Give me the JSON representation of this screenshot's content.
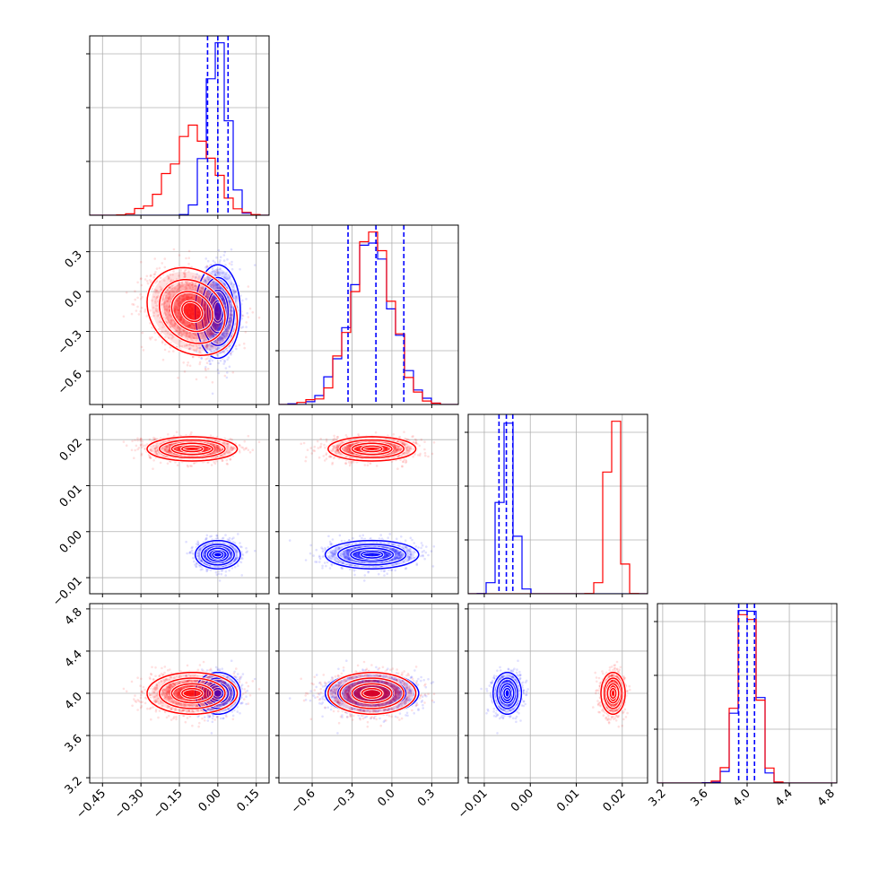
{
  "chart_data": {
    "type": "corner",
    "title": "",
    "grid": true,
    "series_colors": {
      "blue": "#0000ff",
      "red": "#ff0000"
    },
    "parameters": [
      {
        "index": 0,
        "range": [
          -0.5,
          0.2
        ],
        "ticks": [
          -0.45,
          -0.3,
          -0.15,
          0.0,
          0.15
        ],
        "tick_labels": [
          "−0.45",
          "−0.30",
          "−0.15",
          "0.00",
          "0.15"
        ]
      },
      {
        "index": 1,
        "range": [
          -0.85,
          0.5
        ],
        "ticks": [
          -0.6,
          -0.3,
          0.0,
          0.3
        ],
        "tick_labels": [
          "−0.6",
          "−0.3",
          "0.0",
          "0.3"
        ]
      },
      {
        "index": 2,
        "range": [
          -0.0135,
          0.0255
        ],
        "ticks": [
          -0.01,
          0.0,
          0.01,
          0.02
        ],
        "tick_labels": [
          "−0.01",
          "0.00",
          "0.01",
          "0.02"
        ]
      },
      {
        "index": 3,
        "range": [
          3.15,
          4.85
        ],
        "ticks": [
          3.2,
          3.6,
          4.0,
          4.4,
          4.8
        ],
        "tick_labels": [
          "3.2",
          "3.6",
          "4.0",
          "4.4",
          "4.8"
        ]
      }
    ],
    "series": [
      {
        "color": "blue",
        "mean": [
          0.0,
          -0.15,
          -0.005,
          4.0
        ],
        "std": [
          0.04,
          0.16,
          0.0014,
          0.09
        ],
        "corr_01": 0.0,
        "quantile_lines": [
          [
            -0.04,
            0.0,
            0.04
          ],
          [
            -0.33,
            -0.12,
            0.09
          ],
          [
            -0.0068,
            -0.0052,
            -0.0038
          ],
          [
            3.92,
            4.0,
            4.07
          ]
        ]
      },
      {
        "color": "red",
        "mean": [
          -0.1,
          -0.15,
          0.018,
          4.0
        ],
        "std": [
          0.08,
          0.15,
          0.0012,
          0.09
        ],
        "corr_01": -0.2
      }
    ]
  }
}
